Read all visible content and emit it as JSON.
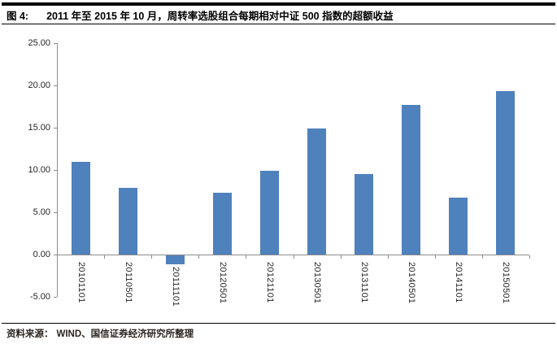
{
  "header": {
    "figure_label": "图 4:",
    "title": "2011 年至 2015 年 10 月，周转率选股组合每期相对中证 500 指数的超额收益"
  },
  "footer": {
    "source_label": "资料来源：",
    "source_text": "WIND、国信证券经济研究所整理"
  },
  "chart_data": {
    "type": "bar",
    "title": "",
    "xlabel": "",
    "ylabel": "",
    "categories": [
      "20101101",
      "20110501",
      "20111101",
      "20120501",
      "20121101",
      "20130501",
      "20131101",
      "20140501",
      "20141101",
      "20150501"
    ],
    "values": [
      11.0,
      7.9,
      -1.1,
      7.3,
      9.9,
      14.9,
      9.5,
      17.7,
      6.7,
      19.3
    ],
    "ylim": [
      -5,
      25
    ],
    "ytick_interval": 5,
    "ytick_labels": [
      "25.00",
      "20.00",
      "15.00",
      "10.00",
      "5.00",
      "0.00",
      "-5.00"
    ],
    "grid": false,
    "legend": "none",
    "bar_color": "#4f81bd",
    "axis_color": "#8c8c8c"
  }
}
